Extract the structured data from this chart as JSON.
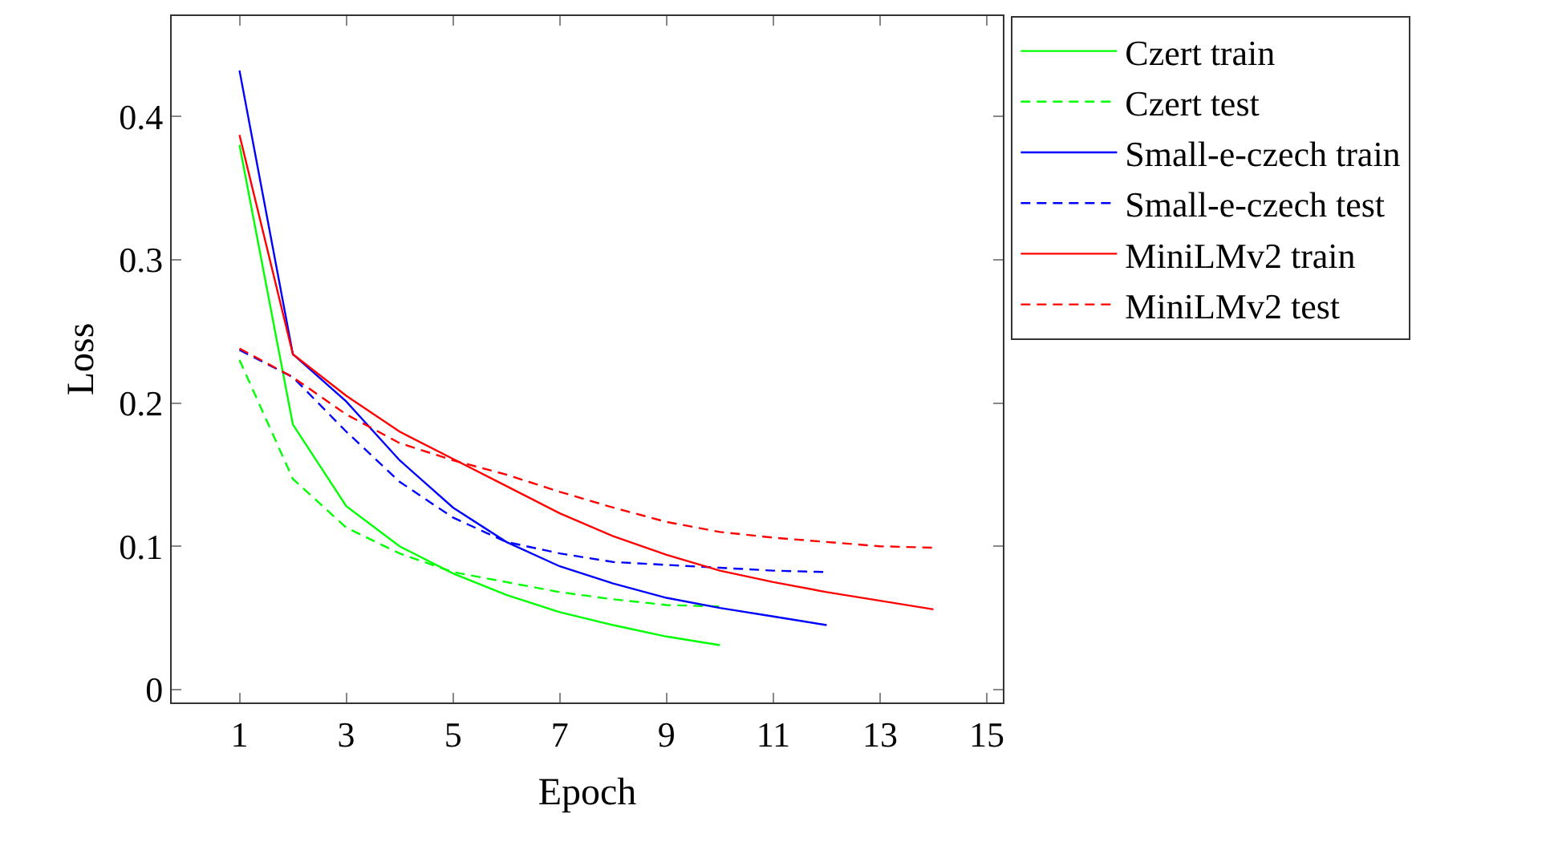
{
  "chart_data": {
    "type": "line",
    "xlabel": "Epoch",
    "ylabel": "Loss",
    "xlim": [
      -0.27,
      15.3
    ],
    "ylim": [
      -0.009,
      0.47
    ],
    "xticks": [
      1,
      3,
      5,
      7,
      9,
      11,
      13,
      15
    ],
    "yticks": [
      0,
      0.1,
      0.2,
      0.3,
      0.4
    ],
    "grid": false,
    "legend": "top right",
    "marker": "none",
    "series": [
      {
        "name": "Czert train",
        "color": "#00ff00",
        "line_style": "solid",
        "x": [
          1,
          2,
          3,
          4,
          5,
          6,
          7,
          8,
          9,
          10
        ],
        "values": [
          0.38,
          0.185,
          0.128,
          0.1,
          0.081,
          0.066,
          0.054,
          0.045,
          0.037,
          0.031
        ]
      },
      {
        "name": "Czert test",
        "color": "#00ff00",
        "line_style": "dashed",
        "x": [
          1,
          2,
          3,
          4,
          5,
          6,
          7,
          8,
          9,
          10
        ],
        "values": [
          0.23,
          0.147,
          0.113,
          0.095,
          0.082,
          0.075,
          0.068,
          0.063,
          0.059,
          0.058
        ]
      },
      {
        "name": "Small-e-czech train",
        "color": "#0000ff",
        "line_style": "solid",
        "x": [
          1,
          2,
          3,
          4,
          5,
          6,
          7,
          8,
          9,
          10,
          11,
          12
        ],
        "values": [
          0.432,
          0.234,
          0.201,
          0.16,
          0.127,
          0.103,
          0.086,
          0.074,
          0.064,
          0.057,
          0.051,
          0.045
        ]
      },
      {
        "name": "Small-e-czech test",
        "color": "#0000ff",
        "line_style": "dashed",
        "x": [
          1,
          2,
          3,
          4,
          5,
          6,
          7,
          8,
          9,
          10,
          11,
          12
        ],
        "values": [
          0.237,
          0.218,
          0.18,
          0.145,
          0.12,
          0.103,
          0.095,
          0.089,
          0.087,
          0.085,
          0.083,
          0.082
        ]
      },
      {
        "name": "MiniLMv2 train",
        "color": "#ff0000",
        "line_style": "solid",
        "x": [
          1,
          2,
          3,
          4,
          5,
          6,
          7,
          8,
          9,
          10,
          11,
          12,
          13,
          14
        ],
        "values": [
          0.387,
          0.234,
          0.205,
          0.18,
          0.161,
          0.142,
          0.123,
          0.107,
          0.094,
          0.083,
          0.075,
          0.068,
          0.062,
          0.056
        ]
      },
      {
        "name": "MiniLMv2 test",
        "color": "#ff0000",
        "line_style": "dashed",
        "x": [
          1,
          2,
          3,
          4,
          5,
          6,
          7,
          8,
          9,
          10,
          11,
          12,
          13,
          14
        ],
        "values": [
          0.238,
          0.218,
          0.192,
          0.172,
          0.16,
          0.15,
          0.138,
          0.127,
          0.117,
          0.11,
          0.106,
          0.103,
          0.1,
          0.099
        ]
      }
    ]
  }
}
